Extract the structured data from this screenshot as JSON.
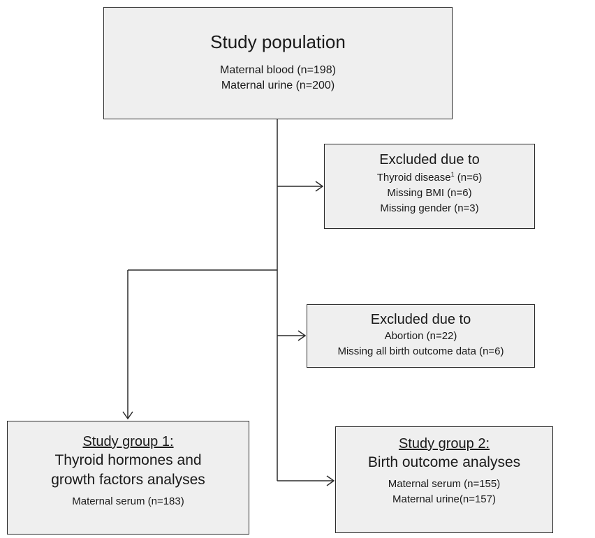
{
  "study_population": {
    "title": "Study population",
    "lines": [
      "Maternal blood (n=198)",
      "Maternal urine (n=200)"
    ]
  },
  "exclusion_1": {
    "title": "Excluded due to",
    "thyroid_label": "Thyroid disease",
    "thyroid_footnote": "1",
    "thyroid_count": " (n=6)",
    "lines": [
      "Missing BMI (n=6)",
      "Missing gender (n=3)"
    ]
  },
  "exclusion_2": {
    "title": "Excluded due to",
    "lines": [
      "Abortion (n=22)",
      "Missing all birth outcome data (n=6)"
    ]
  },
  "study_group_1": {
    "heading": "Study group 1:",
    "subtitle_lines": [
      "Thyroid hormones and",
      "growth factors analyses"
    ],
    "lines": [
      "Maternal serum (n=183)"
    ]
  },
  "study_group_2": {
    "heading": "Study group 2:",
    "subtitle": "Birth outcome analyses",
    "lines": [
      "Maternal serum (n=155)",
      "Maternal urine(n=157)"
    ]
  },
  "colors": {
    "box_fill": "#efefef",
    "stroke": "#2b2b2b"
  }
}
